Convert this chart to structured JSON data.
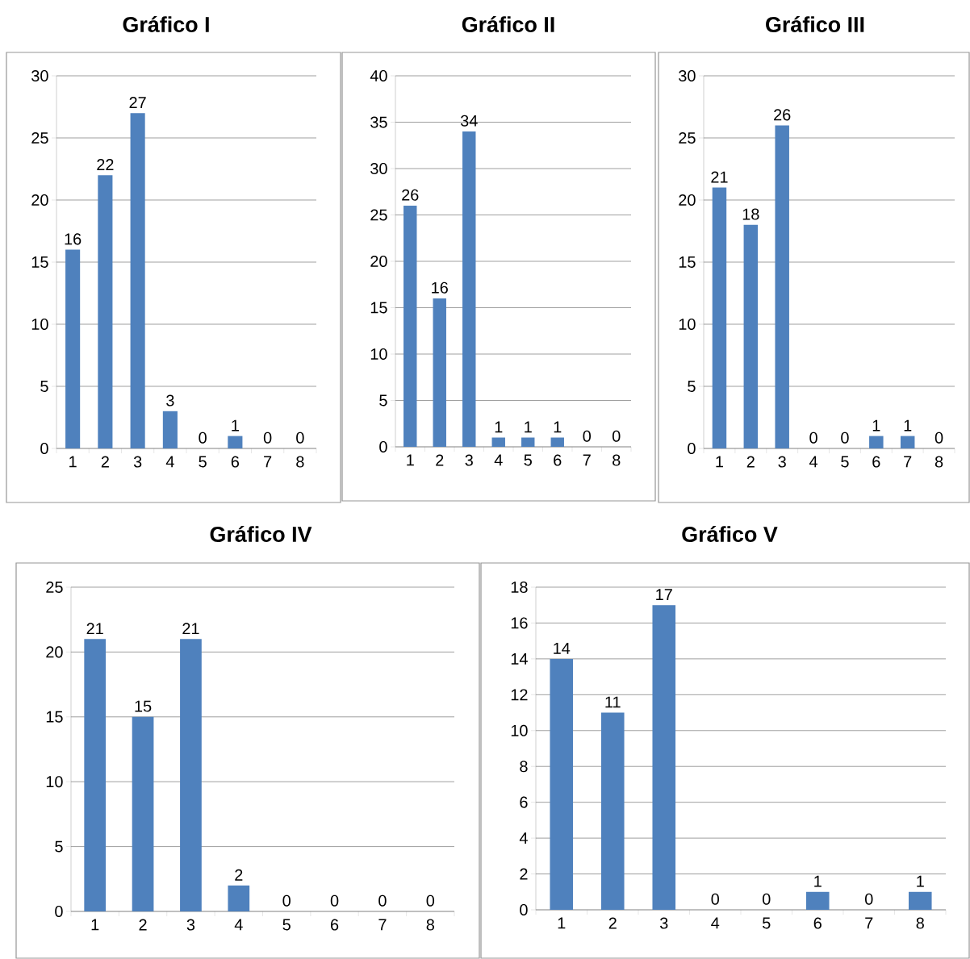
{
  "chart_data": [
    {
      "type": "bar",
      "title": "**Gráfico I**",
      "categories": [
        "1",
        "2",
        "3",
        "4",
        "5",
        "6",
        "7",
        "8"
      ],
      "values": [
        16,
        22,
        27,
        3,
        0,
        1,
        0,
        0
      ],
      "color": "#4f81bd",
      "ylim": [
        0,
        30
      ],
      "yticks": [
        0,
        5,
        10,
        15,
        20,
        25,
        30
      ],
      "grid": "y",
      "data_labels": true
    },
    {
      "type": "bar",
      "title": "**Gráfico II**",
      "categories": [
        "1",
        "2",
        "3",
        "4",
        "5",
        "6",
        "7",
        "8"
      ],
      "values": [
        26,
        16,
        34,
        1,
        1,
        1,
        0,
        0
      ],
      "color": "#4f81bd",
      "ylim": [
        0,
        40
      ],
      "yticks": [
        0,
        5,
        10,
        15,
        20,
        25,
        30,
        35,
        40
      ],
      "grid": "y",
      "data_labels": true
    },
    {
      "type": "bar",
      "title": "**Gráfico III**",
      "categories": [
        "1",
        "2",
        "3",
        "4",
        "5",
        "6",
        "7",
        "8"
      ],
      "values": [
        21,
        18,
        26,
        0,
        0,
        1,
        1,
        0
      ],
      "color": "#4f81bd",
      "ylim": [
        0,
        30
      ],
      "yticks": [
        0,
        5,
        10,
        15,
        20,
        25,
        30
      ],
      "grid": "y",
      "data_labels": true
    },
    {
      "type": "bar",
      "title": "**Gráfico IV**",
      "categories": [
        "1",
        "2",
        "3",
        "4",
        "5",
        "6",
        "7",
        "8"
      ],
      "values": [
        21,
        15,
        21,
        2,
        0,
        0,
        0,
        0
      ],
      "color": "#4f81bd",
      "ylim": [
        0,
        25
      ],
      "yticks": [
        0,
        5,
        10,
        15,
        20,
        25
      ],
      "grid": "y",
      "data_labels": true
    },
    {
      "type": "bar",
      "title": "**Gráfico V**",
      "categories": [
        "1",
        "2",
        "3",
        "4",
        "5",
        "6",
        "7",
        "8"
      ],
      "values": [
        14,
        11,
        17,
        0,
        0,
        1,
        0,
        1
      ],
      "color": "#4f81bd",
      "ylim": [
        0,
        18
      ],
      "yticks": [
        0,
        2,
        4,
        6,
        8,
        10,
        12,
        14,
        16,
        18
      ],
      "grid": "y",
      "data_labels": true
    }
  ]
}
